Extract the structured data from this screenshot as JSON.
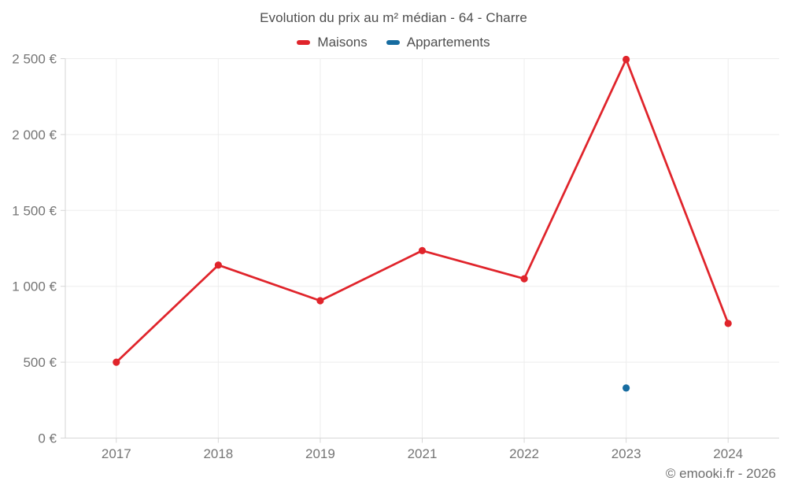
{
  "title": "Evolution du prix au m² médian - 64 - Charre",
  "footer": "© emooki.fr - 2026",
  "legend": [
    {
      "label": "Maisons",
      "color": "#e0242b"
    },
    {
      "label": "Appartements",
      "color": "#176ca0"
    }
  ],
  "chart_data": {
    "type": "line",
    "title": "Evolution du prix au m² médian - 64 - Charre",
    "categories": [
      "2017",
      "2018",
      "2019",
      "2021",
      "2022",
      "2023",
      "2024"
    ],
    "series": [
      {
        "name": "Maisons",
        "color": "#e0242b",
        "values": [
          500,
          1140,
          905,
          1235,
          1050,
          2495,
          755
        ]
      },
      {
        "name": "Appartements",
        "color": "#176ca0",
        "values": [
          null,
          null,
          null,
          null,
          null,
          330,
          null
        ]
      }
    ],
    "yticks": [
      {
        "v": 0,
        "label": "0 €"
      },
      {
        "v": 500,
        "label": "500 €"
      },
      {
        "v": 1000,
        "label": "1 000 €"
      },
      {
        "v": 1500,
        "label": "1 500 €"
      },
      {
        "v": 2000,
        "label": "2 000 €"
      },
      {
        "v": 2500,
        "label": "2 500 €"
      }
    ],
    "ylim": [
      0,
      2500
    ],
    "xlabel": "",
    "ylabel": "",
    "grid": true,
    "legend_position": "top",
    "grid_color": "#ededed",
    "axis_color": "#d6d6d6"
  }
}
